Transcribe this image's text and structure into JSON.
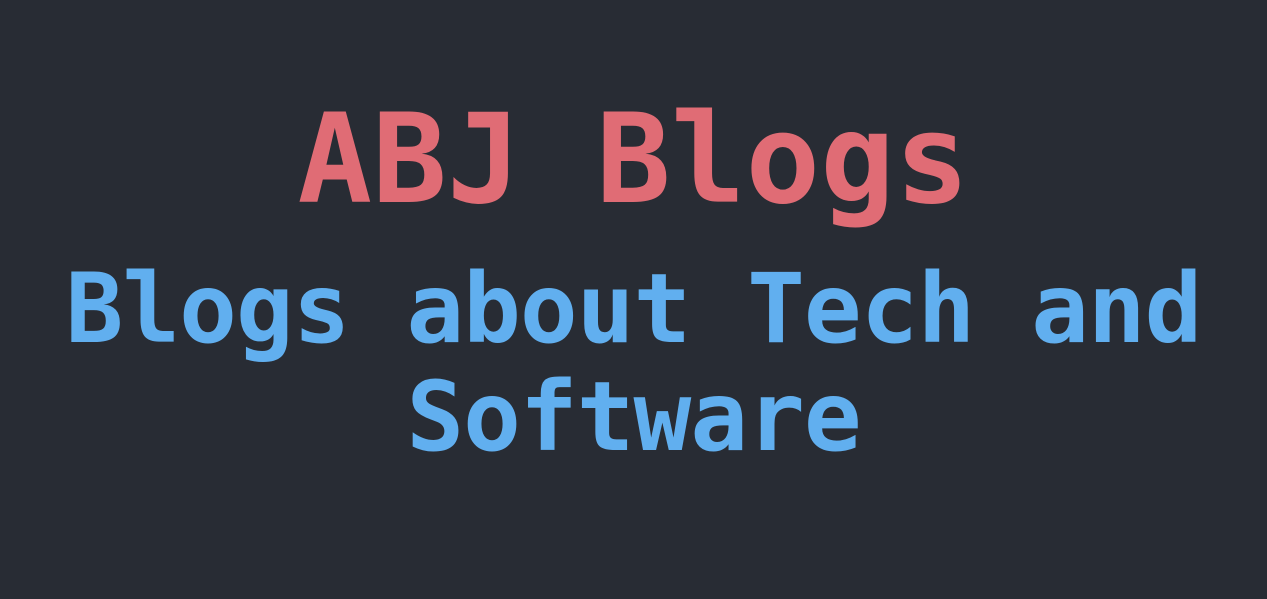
{
  "hero": {
    "title": "ABJ Blogs",
    "tagline_line1": "Blogs about Tech and",
    "tagline_line2": "Software"
  },
  "colors": {
    "background": "#282c34",
    "title": "#e06c75",
    "tagline": "#61afef"
  }
}
